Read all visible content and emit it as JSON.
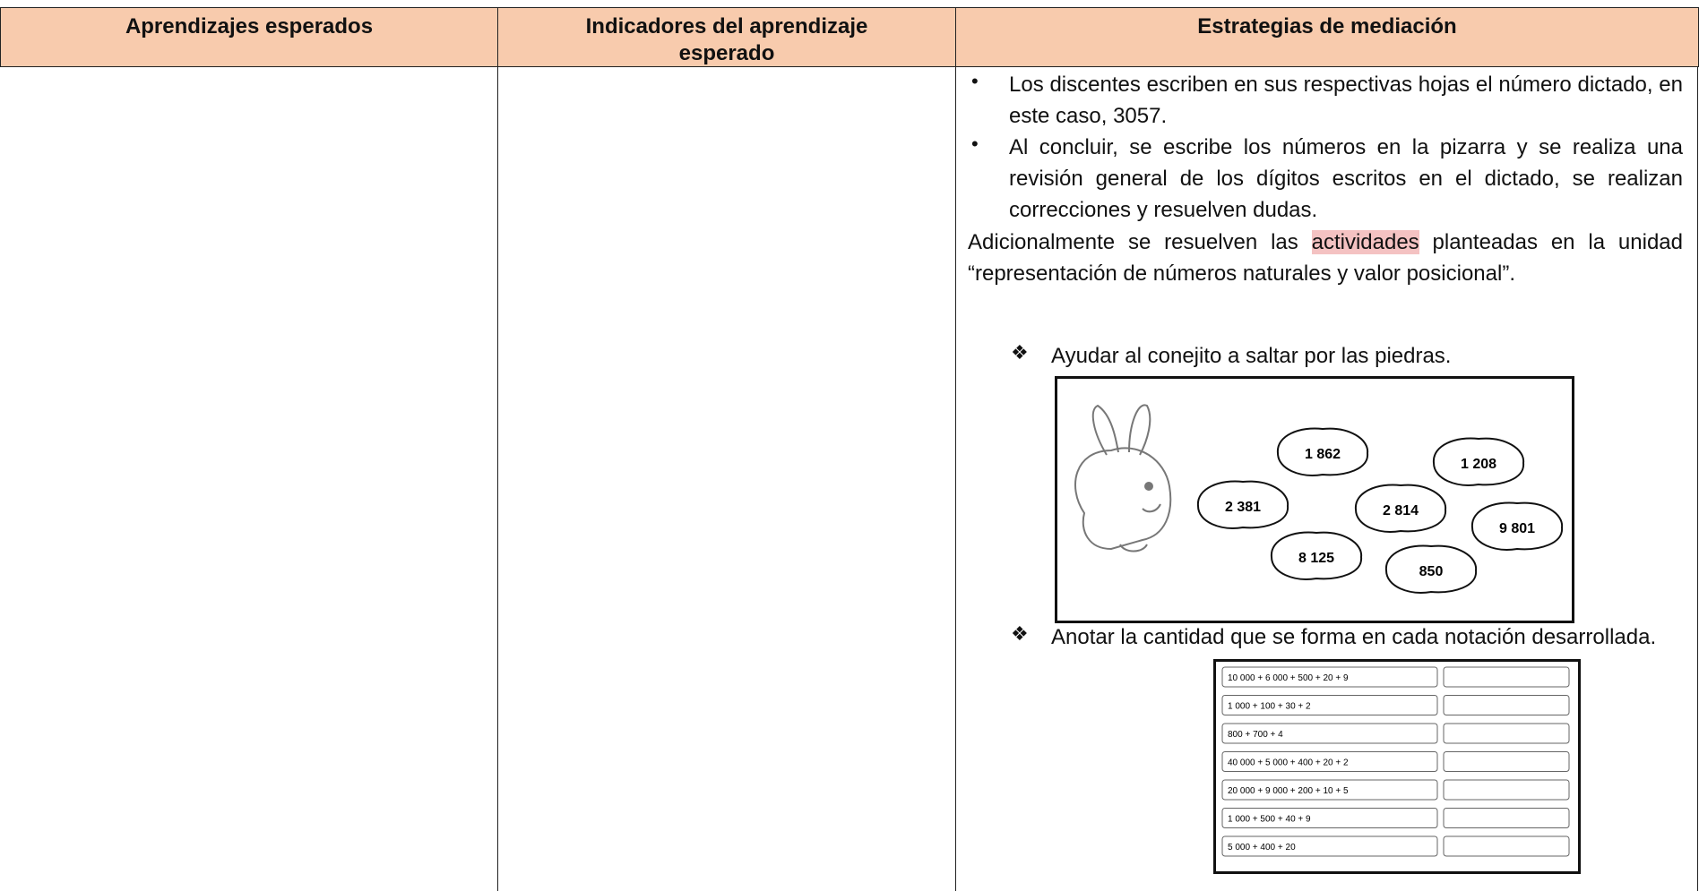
{
  "header": {
    "columns": [
      "Aprendizajes esperados",
      "Indicadores del aprendizaje esperado",
      "Estrategias de mediación"
    ]
  },
  "body": {
    "bullets": [
      "Los discentes escriben en sus respectivas hojas el número dictado, en este caso, 3057.",
      "Al concluir, se escribe los números en la pizarra y se realiza una revisión general de los dígitos escritos en el dictado, se realizan correcciones y resuelven dudas."
    ],
    "paragraph": {
      "before": "Adicionalmente se resuelven las ",
      "highlight": "actividades",
      "after": " planteadas en la unidad “representación de números naturales y valor posicional”."
    },
    "activities": [
      {
        "label": "Ayudar al conejito a saltar por las piedras.",
        "stones": [
          "1 862",
          "1 208",
          "2 381",
          "2 814",
          "9 801",
          "8 125",
          "850"
        ]
      },
      {
        "label": "Anotar la cantidad que se forma en cada notación desarrollada.",
        "expressions": [
          "10 000 + 6 000 + 500 + 20 + 9",
          "1 000 + 100 + 30 + 2",
          "800 + 700 + 4",
          "40 000 + 5 000 + 400 + 20 + 2",
          "20 000 + 9 000 + 200 + 10 + 5",
          "1 000 + 500 + 40 + 9",
          "5 000 + 400 + 20"
        ]
      }
    ]
  }
}
